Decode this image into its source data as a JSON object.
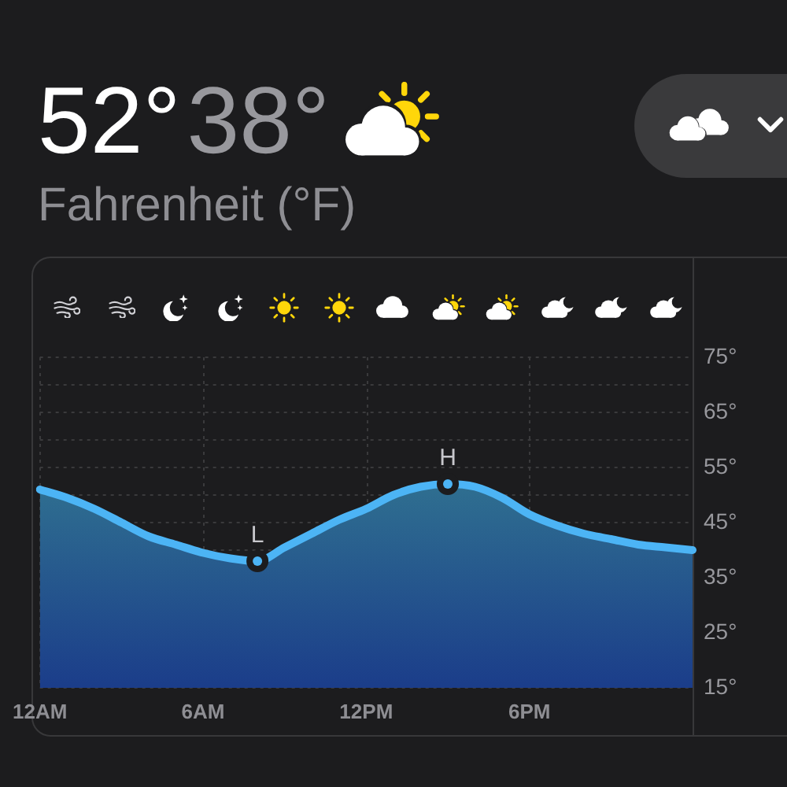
{
  "chart_data": {
    "type": "area",
    "title": "52°",
    "subtitle": "38°",
    "ylabel": "Fahrenheit (°F)",
    "categories": [
      "12AM",
      null,
      null,
      null,
      null,
      null,
      "6AM",
      null,
      null,
      null,
      null,
      null,
      "12PM",
      null,
      null,
      null,
      null,
      null,
      "6PM",
      null,
      null,
      null,
      null,
      null,
      null
    ],
    "series": [
      {
        "color": "#4cb4f5",
        "values": [
          51,
          49.5,
          47.5,
          45,
          42.5,
          41,
          39.5,
          38.5,
          38,
          40.5,
          43,
          45.5,
          47.5,
          50,
          51.5,
          52,
          51.5,
          49.5,
          46.5,
          44.5,
          43,
          42,
          41,
          40.5,
          40
        ]
      }
    ],
    "ylim": [
      15,
      93
    ],
    "yticks": [
      {
        "value": 15,
        "label": "15°"
      },
      {
        "value": 20,
        "label": null
      },
      {
        "value": 25,
        "label": "25°"
      },
      {
        "value": 30,
        "label": null
      },
      {
        "value": 35,
        "label": "35°"
      },
      {
        "value": 40,
        "label": null
      },
      {
        "value": 45,
        "label": "45°"
      },
      {
        "value": 50,
        "label": null
      },
      {
        "value": 55,
        "label": "55°"
      },
      {
        "value": 60,
        "label": null
      },
      {
        "value": 65,
        "label": "65°"
      },
      {
        "value": 70,
        "label": null
      },
      {
        "value": 75,
        "label": "75°"
      }
    ],
    "grid": true,
    "marker": "none",
    "annotations": [
      {
        "text": "L",
        "y": 38
      },
      {
        "text": "H",
        "y": 52
      }
    ]
  }
}
